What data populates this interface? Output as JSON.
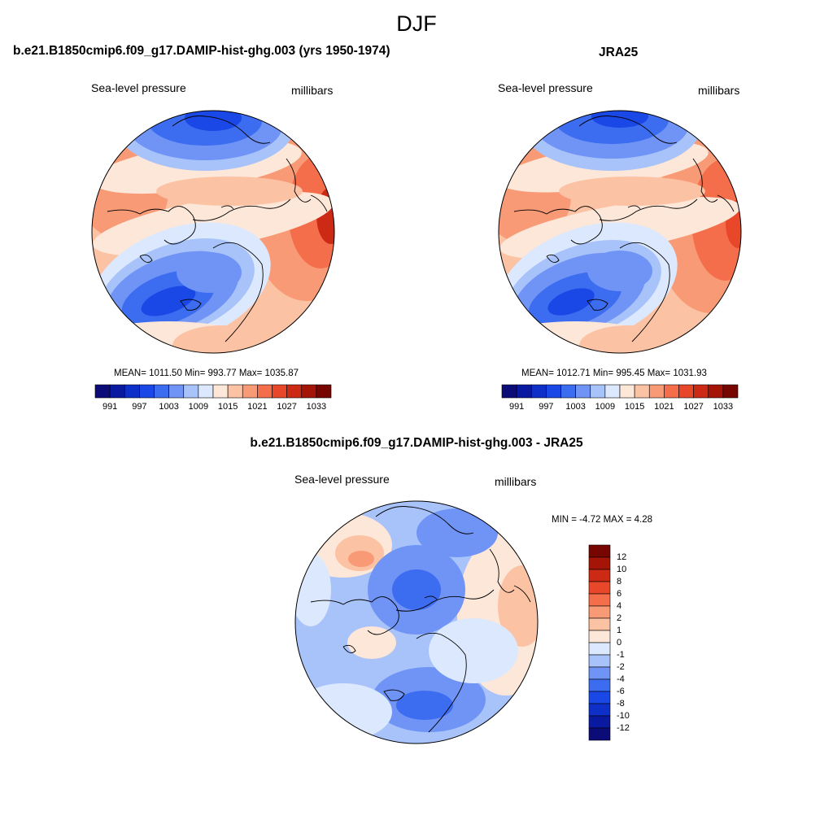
{
  "figure": {
    "season": "DJF"
  },
  "panels": [
    {
      "title": "b.e21.B1850cmip6.f09_g17.DAMIP-hist-ghg.003 (yrs 1950-1974)",
      "field_label": "Sea-level pressure",
      "units": "millibars",
      "stats": "MEAN= 1011.50  Min= 993.77  Max= 1035.87"
    },
    {
      "title": "JRA25",
      "field_label": "Sea-level pressure",
      "units": "millibars",
      "stats": "MEAN= 1012.71  Min= 995.45  Max= 1031.93"
    },
    {
      "title": "b.e21.B1850cmip6.f09_g17.DAMIP-hist-ghg.003 - JRA25",
      "field_label": "Sea-level pressure",
      "units": "millibars",
      "stats": "MIN =  -4.72 MAX =   4.28"
    }
  ],
  "colorbars": {
    "slp": {
      "colors": [
        "#0c0c78",
        "#0a1aa0",
        "#0f30c8",
        "#1a48e6",
        "#3c6cf0",
        "#7094f5",
        "#a8c2fa",
        "#dce8fd",
        "#fde7d8",
        "#fcc2a4",
        "#f99a76",
        "#f46e4b",
        "#e8472a",
        "#cc2a14",
        "#a41508",
        "#780600"
      ],
      "tick_labels": [
        "991",
        "997",
        "1003",
        "1009",
        "1015",
        "1021",
        "1027",
        "1033"
      ]
    },
    "diff": {
      "colors": [
        "#780600",
        "#a41508",
        "#cc2a14",
        "#e8472a",
        "#f46e4b",
        "#f99a76",
        "#fcc2a4",
        "#fde7d8",
        "#dce8fd",
        "#a8c2fa",
        "#7094f5",
        "#3c6cf0",
        "#1a48e6",
        "#0f30c8",
        "#0a1aa0",
        "#0c0c78"
      ],
      "tick_labels": [
        "12",
        "10",
        "8",
        "6",
        "4",
        "2",
        "1",
        "0",
        "-1",
        "-2",
        "-4",
        "-6",
        "-8",
        "-10",
        "-12"
      ]
    }
  }
}
